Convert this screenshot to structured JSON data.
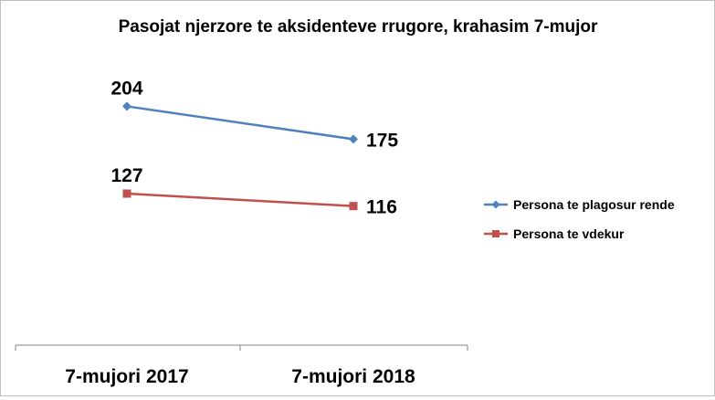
{
  "chart_data": {
    "type": "line",
    "title": "Pasojat njerzore te aksidenteve rrugore, krahasim 7-mujor",
    "categories": [
      "7-mujori 2017",
      "7-mujori 2018"
    ],
    "series": [
      {
        "name": "Persona te plagosur rende",
        "values": [
          204,
          175
        ],
        "color": "#4f81bd",
        "marker": "diamond"
      },
      {
        "name": "Persona te vdekur",
        "values": [
          127,
          116
        ],
        "color": "#c0504d",
        "marker": "square"
      }
    ],
    "xlabel": "",
    "ylabel": "",
    "ylim": [
      0,
      250
    ],
    "grid": false,
    "legend": "right"
  }
}
